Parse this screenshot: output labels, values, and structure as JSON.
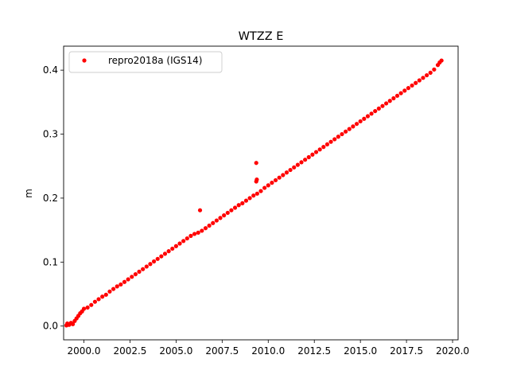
{
  "chart_data": {
    "type": "scatter",
    "title": "WTZZ E",
    "xlabel": "",
    "ylabel": "m",
    "xlim": [
      1998.9,
      2020.3
    ],
    "ylim": [
      -0.0215,
      0.4375
    ],
    "xticks": [
      2000.0,
      2002.5,
      2005.0,
      2007.5,
      2010.0,
      2012.5,
      2015.0,
      2017.5,
      2020.0
    ],
    "xtick_labels": [
      "2000.0",
      "2002.5",
      "2005.0",
      "2007.5",
      "2010.0",
      "2012.5",
      "2015.0",
      "2017.5",
      "2020.0"
    ],
    "yticks": [
      0.0,
      0.1,
      0.2,
      0.3,
      0.4
    ],
    "ytick_labels": [
      "0.0",
      "0.1",
      "0.2",
      "0.3",
      "0.4"
    ],
    "grid": false,
    "legend": {
      "position": "top-left",
      "entries": [
        "repro2018a (IGS14)"
      ]
    },
    "series": [
      {
        "name": "repro2018a (IGS14)",
        "color": "#ff0000",
        "marker": "circle",
        "x": [
          1999.05,
          1999.1,
          1999.2,
          1999.3,
          1999.4,
          1999.5,
          1999.6,
          1999.7,
          1999.8,
          1999.9,
          2000.0,
          2000.2,
          2000.4,
          2000.6,
          2000.8,
          2001.0,
          2001.2,
          2001.4,
          2001.6,
          2001.8,
          2002.0,
          2002.2,
          2002.4,
          2002.6,
          2002.8,
          2003.0,
          2003.2,
          2003.4,
          2003.6,
          2003.8,
          2004.0,
          2004.2,
          2004.4,
          2004.6,
          2004.8,
          2005.0,
          2005.2,
          2005.4,
          2005.6,
          2005.8,
          2006.0,
          2006.2,
          2006.3,
          2006.4,
          2006.6,
          2006.8,
          2007.0,
          2007.2,
          2007.4,
          2007.6,
          2007.8,
          2008.0,
          2008.2,
          2008.4,
          2008.6,
          2008.8,
          2009.0,
          2009.2,
          2009.35,
          2009.35,
          2009.38,
          2009.4,
          2009.6,
          2009.8,
          2010.0,
          2010.2,
          2010.4,
          2010.6,
          2010.8,
          2011.0,
          2011.2,
          2011.4,
          2011.6,
          2011.8,
          2012.0,
          2012.2,
          2012.4,
          2012.6,
          2012.8,
          2013.0,
          2013.2,
          2013.4,
          2013.6,
          2013.8,
          2014.0,
          2014.2,
          2014.4,
          2014.6,
          2014.8,
          2015.0,
          2015.2,
          2015.4,
          2015.6,
          2015.8,
          2016.0,
          2016.2,
          2016.4,
          2016.6,
          2016.8,
          2017.0,
          2017.2,
          2017.4,
          2017.6,
          2017.8,
          2018.0,
          2018.2,
          2018.4,
          2018.6,
          2018.8,
          2019.0,
          2019.2,
          2019.3,
          2019.4
        ],
        "y": [
          0.001,
          0.004,
          0.002,
          0.005,
          0.003,
          0.008,
          0.012,
          0.016,
          0.02,
          0.023,
          0.027,
          0.029,
          0.033,
          0.038,
          0.042,
          0.046,
          0.049,
          0.054,
          0.058,
          0.062,
          0.065,
          0.069,
          0.073,
          0.077,
          0.081,
          0.085,
          0.089,
          0.093,
          0.097,
          0.101,
          0.105,
          0.109,
          0.113,
          0.117,
          0.121,
          0.125,
          0.129,
          0.133,
          0.137,
          0.141,
          0.144,
          0.146,
          0.181,
          0.149,
          0.153,
          0.157,
          0.161,
          0.165,
          0.169,
          0.173,
          0.177,
          0.181,
          0.185,
          0.189,
          0.192,
          0.196,
          0.2,
          0.204,
          0.255,
          0.226,
          0.229,
          0.207,
          0.211,
          0.216,
          0.22,
          0.224,
          0.228,
          0.232,
          0.236,
          0.24,
          0.244,
          0.248,
          0.252,
          0.256,
          0.26,
          0.264,
          0.268,
          0.272,
          0.276,
          0.28,
          0.284,
          0.288,
          0.292,
          0.296,
          0.3,
          0.304,
          0.308,
          0.312,
          0.316,
          0.32,
          0.324,
          0.328,
          0.332,
          0.336,
          0.34,
          0.344,
          0.348,
          0.352,
          0.356,
          0.36,
          0.364,
          0.368,
          0.372,
          0.376,
          0.38,
          0.384,
          0.388,
          0.392,
          0.396,
          0.401,
          0.408,
          0.412,
          0.415
        ]
      }
    ]
  }
}
